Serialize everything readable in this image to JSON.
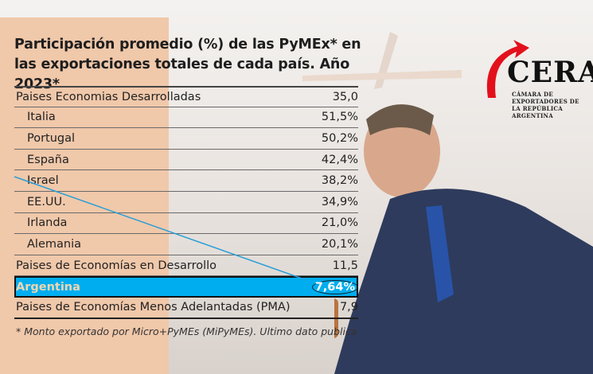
{
  "title": "Participación promedio (%) de las PyMEx* en las exportaciones totales de cada país. Año 2023*",
  "rows": [
    {
      "label": "Paises Economias Desarrolladas",
      "value": "35,0",
      "type": "group"
    },
    {
      "label": "Italia",
      "value": "51,5%",
      "type": "sub"
    },
    {
      "label": "Portugal",
      "value": "50,2%",
      "type": "sub"
    },
    {
      "label": "España",
      "value": "42,4%",
      "type": "sub"
    },
    {
      "label": "Israel",
      "value": "38,2%",
      "type": "sub"
    },
    {
      "label": "EE.UU.",
      "value": "34,9%",
      "type": "sub"
    },
    {
      "label": "Irlanda",
      "value": "21,0%",
      "type": "sub"
    },
    {
      "label": "Alemania",
      "value": "20,1%",
      "type": "sub"
    },
    {
      "label": "Paises de Economías en Desarrollo",
      "value": "11,5",
      "type": "group"
    },
    {
      "label": "Argentina",
      "value": "7,64%",
      "type": "highlight"
    },
    {
      "label": "Paises de Economías Menos Adelantadas (PMA)",
      "value": "7,9",
      "type": "group"
    }
  ],
  "footnote": "* Monto exportado por Micro+PyMEs (MiPyMEs). Ultimo dato publica",
  "logo": {
    "name": "CERA",
    "subtitle": "CÁMARA DE EXPORTADORES DE LA REPÚBLICA ARGENTINA"
  },
  "colors": {
    "highlight": "#00aeef",
    "peach": "#f0c8aa",
    "logo_red": "#e3101c"
  }
}
